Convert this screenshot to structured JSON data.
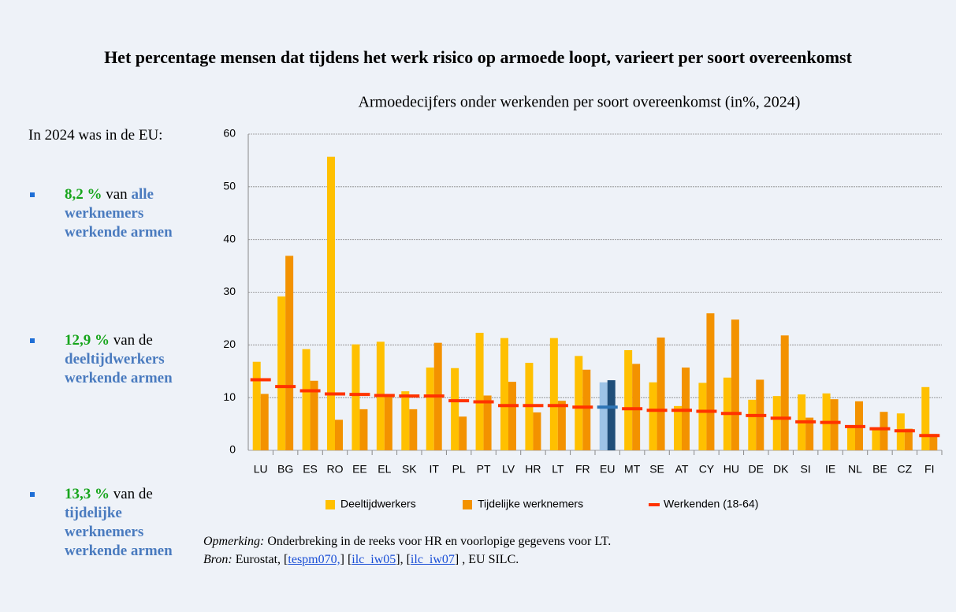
{
  "title": "Het percentage mensen dat tijdens het werk risico op armoede loopt, varieert per soort overeenkomst",
  "left_panel": {
    "intro": "In 2024 was in de EU:",
    "bullets": [
      {
        "value": "8,2 %",
        "text": "van",
        "term": "alle werknemers werkende armen"
      },
      {
        "value": "12,9 %",
        "text": "van de",
        "term": "deeltijdwerkers werkende armen"
      },
      {
        "value": "13,3 %",
        "text": "van de",
        "term": "tijdelijke werknemers werkende armen"
      }
    ]
  },
  "chart_data": {
    "type": "bar",
    "title": "Armoedecijfers onder werkenden per soort overeenkomst (in%, 2024)",
    "categories": [
      "LU",
      "BG",
      "ES",
      "RO",
      "EE",
      "EL",
      "SK",
      "IT",
      "PL",
      "PT",
      "LV",
      "HR",
      "LT",
      "FR",
      "EU",
      "MT",
      "SE",
      "AT",
      "CY",
      "HU",
      "DE",
      "DK",
      "SI",
      "IE",
      "NL",
      "BE",
      "CZ",
      "FI"
    ],
    "series": [
      {
        "name": "Deeltijdwerkers",
        "color": "#ffc000",
        "highlight_color": "#9dc3e6",
        "values": [
          16.8,
          29.2,
          19.2,
          55.7,
          20.1,
          20.6,
          11.2,
          15.7,
          15.6,
          22.3,
          21.3,
          16.6,
          21.3,
          17.9,
          12.9,
          19.0,
          12.9,
          8.4,
          12.8,
          13.8,
          9.6,
          10.3,
          10.6,
          10.8,
          4.6,
          4.3,
          7.0,
          12.0
        ]
      },
      {
        "name": "Tijdelijke werknemers",
        "color": "#f39200",
        "highlight_color": "#1f4e79",
        "values": [
          10.7,
          36.9,
          13.2,
          5.8,
          7.8,
          10.6,
          7.8,
          20.4,
          6.4,
          10.4,
          13.0,
          7.2,
          9.4,
          15.3,
          13.3,
          16.4,
          21.4,
          15.7,
          26.0,
          24.8,
          13.4,
          21.8,
          6.2,
          9.7,
          9.3,
          7.3,
          4.1,
          3.1
        ]
      },
      {
        "name": "Werkenden (18-64)",
        "color": "#ff3300",
        "highlight_color": "#2e75b6",
        "marker": "dash",
        "values": [
          13.4,
          12.1,
          11.3,
          10.7,
          10.6,
          10.4,
          10.3,
          10.3,
          9.4,
          9.2,
          8.5,
          8.5,
          8.5,
          8.2,
          8.2,
          7.9,
          7.6,
          7.6,
          7.4,
          7.0,
          6.6,
          6.1,
          5.4,
          5.3,
          4.5,
          4.1,
          3.7,
          2.8
        ]
      }
    ],
    "highlight_index": 14,
    "ylim": [
      0,
      60
    ],
    "yticks": [
      0,
      10,
      20,
      30,
      40,
      50,
      60
    ],
    "grid": true,
    "legend": "bottom"
  },
  "notes": {
    "remark_label": "Opmerking:",
    "remark": "Onderbreking in de reeks voor HR en voorlopige gegevens voor LT.",
    "source_label": "Bron:",
    "source_parts": [
      " Eurostat, [",
      "] [",
      "], [",
      "] , EU SILC."
    ],
    "links": [
      "tespm070,",
      "ilc_iw05",
      "ilc_iw07"
    ]
  }
}
